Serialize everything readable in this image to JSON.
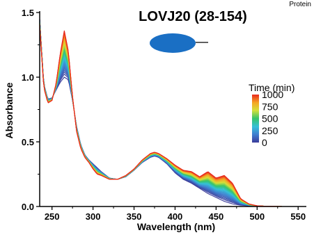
{
  "corner_text": "Protein",
  "chart_data": {
    "type": "line",
    "title": "LOVJ20 (28-154)",
    "xlabel": "Wavelength (nm)",
    "ylabel": "Absorbance",
    "xlim": [
      235,
      560
    ],
    "ylim": [
      0,
      1.5
    ],
    "x_ticks": [
      250,
      300,
      350,
      400,
      450,
      500,
      550
    ],
    "y_ticks": [
      0.0,
      0.5,
      1.0,
      1.5
    ],
    "x_tick_labels": [
      "250",
      "300",
      "350",
      "400",
      "450",
      "500",
      "550"
    ],
    "y_tick_labels": [
      "0.0",
      "0.5",
      "1.0",
      "1.5"
    ],
    "legend": {
      "title": "Time (min)",
      "labels": [
        "1000",
        "750",
        "500",
        "250",
        "0"
      ],
      "range": [
        0,
        1000
      ],
      "placement": "right",
      "colormap": [
        "#3b3b9a",
        "#3f7fd0",
        "#35c0d8",
        "#36c46a",
        "#d4e03a",
        "#f5a623",
        "#e8281e"
      ]
    },
    "series_first": {
      "time": 0,
      "x": [
        235,
        240,
        245,
        250,
        255,
        260,
        265,
        270,
        275,
        280,
        285,
        290,
        295,
        300,
        305,
        310,
        320,
        330,
        340,
        350,
        360,
        370,
        375,
        380,
        390,
        400,
        410,
        420,
        430,
        440,
        450,
        460,
        470,
        480,
        490,
        500,
        510,
        520,
        530,
        540,
        550,
        560
      ],
      "y": [
        1.45,
        0.95,
        0.83,
        0.84,
        0.9,
        0.96,
        1.0,
        0.98,
        0.82,
        0.62,
        0.48,
        0.4,
        0.36,
        0.33,
        0.3,
        0.27,
        0.22,
        0.21,
        0.23,
        0.28,
        0.34,
        0.38,
        0.39,
        0.38,
        0.33,
        0.26,
        0.21,
        0.18,
        0.14,
        0.1,
        0.07,
        0.04,
        0.02,
        0.01,
        0.005,
        0.003,
        0.002,
        0.001,
        0.0,
        0.0,
        0.0,
        0.0
      ]
    },
    "series_last": {
      "time": 1000,
      "x": [
        235,
        240,
        245,
        250,
        255,
        260,
        265,
        270,
        275,
        280,
        285,
        290,
        295,
        300,
        305,
        310,
        320,
        330,
        340,
        350,
        360,
        370,
        375,
        380,
        390,
        400,
        410,
        420,
        430,
        440,
        450,
        460,
        465,
        470,
        480,
        490,
        500,
        510,
        520,
        530,
        540,
        550,
        560
      ],
      "y": [
        1.4,
        0.92,
        0.8,
        0.82,
        0.95,
        1.18,
        1.36,
        1.2,
        0.85,
        0.58,
        0.45,
        0.38,
        0.34,
        0.29,
        0.25,
        0.24,
        0.21,
        0.21,
        0.24,
        0.29,
        0.36,
        0.41,
        0.42,
        0.41,
        0.37,
        0.32,
        0.28,
        0.27,
        0.23,
        0.27,
        0.22,
        0.24,
        0.21,
        0.18,
        0.06,
        0.02,
        0.005,
        0.002,
        0.001,
        0.0,
        0.0,
        0.0,
        0.0
      ]
    },
    "n_curves": 40
  }
}
